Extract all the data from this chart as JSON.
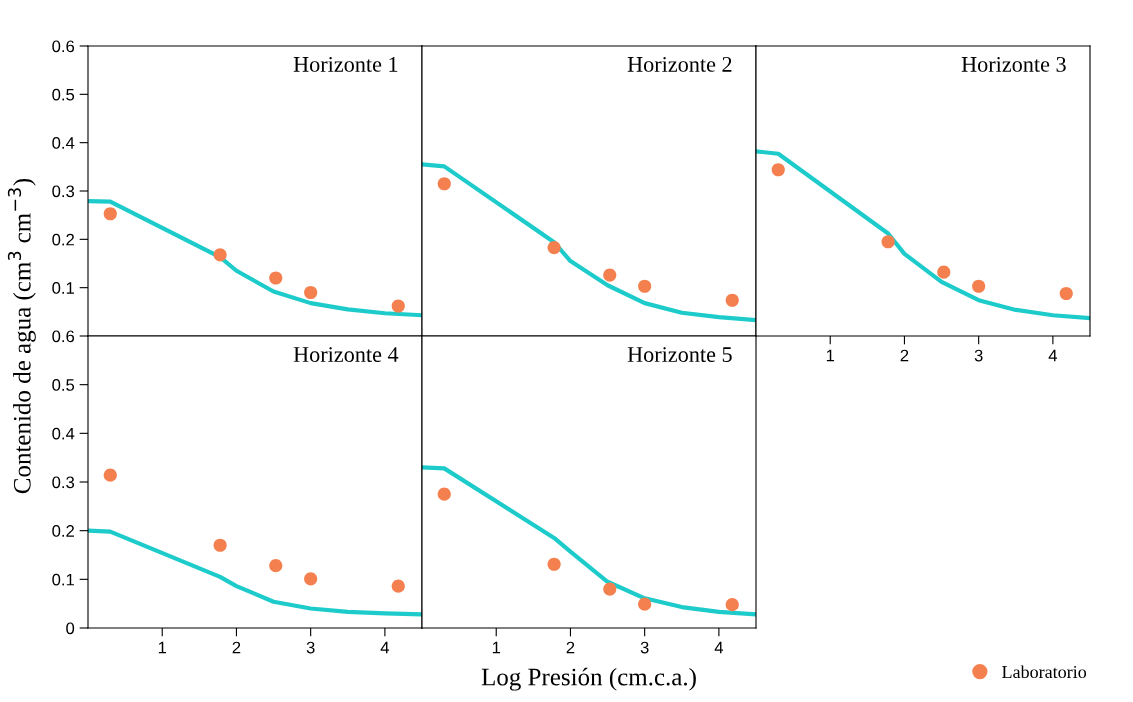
{
  "chart_data": [
    {
      "type": "line",
      "title": "Horizonte 1",
      "ylabel": "Contenido de agua (cm$^{3}$ cm$^{−3}$)",
      "xlim": [
        0,
        4.5
      ],
      "ylim": [
        0,
        0.6
      ],
      "yticks": [
        0.1,
        0.2,
        0.3,
        0.4,
        0.5,
        0.6
      ],
      "tick_labels": "y",
      "series": [
        {
          "color": "#1ecbcb",
          "x": [
            0,
            0.3,
            1.78,
            2,
            2.5,
            3,
            3.5,
            4,
            4.5
          ],
          "values": [
            0.279,
            0.278,
            0.163,
            0.135,
            0.092,
            0.068,
            0.055,
            0.047,
            0.043
          ]
        },
        {
          "type": "scatter",
          "name": "Laboratorio",
          "color": "#f5804f",
          "marker": "circle",
          "x": [
            0.3,
            1.78,
            2.53,
            3,
            4.18
          ],
          "values": [
            0.253,
            0.168,
            0.12,
            0.09,
            0.062
          ]
        }
      ]
    },
    {
      "type": "line",
      "title": "Horizonte 2",
      "xlim": [
        0,
        4.5
      ],
      "ylim": [
        0,
        0.6
      ],
      "tick_labels": false,
      "series": [
        {
          "color": "#1ecbcb",
          "x": [
            0,
            0.3,
            1.78,
            2,
            2.5,
            3,
            3.5,
            4,
            4.5
          ],
          "values": [
            0.355,
            0.351,
            0.194,
            0.155,
            0.105,
            0.068,
            0.048,
            0.039,
            0.033
          ]
        },
        {
          "type": "scatter",
          "name": "Laboratorio",
          "color": "#f5804f",
          "marker": "circle",
          "x": [
            0.3,
            1.78,
            2.53,
            3,
            4.18
          ],
          "values": [
            0.315,
            0.183,
            0.126,
            0.103,
            0.074
          ]
        }
      ]
    },
    {
      "type": "line",
      "title": "Horizonte 3",
      "xlim": [
        0,
        4.5
      ],
      "ylim": [
        0,
        0.6
      ],
      "xticks": [
        1,
        2,
        3,
        4
      ],
      "tick_labels": "x",
      "series": [
        {
          "color": "#1ecbcb",
          "x": [
            0,
            0.3,
            1.78,
            2,
            2.5,
            3,
            3.5,
            4,
            4.5
          ],
          "values": [
            0.382,
            0.377,
            0.212,
            0.17,
            0.112,
            0.074,
            0.054,
            0.043,
            0.037
          ]
        },
        {
          "type": "scatter",
          "name": "Laboratorio",
          "color": "#f5804f",
          "marker": "circle",
          "x": [
            0.3,
            1.78,
            2.53,
            3,
            4.18
          ],
          "values": [
            0.344,
            0.195,
            0.132,
            0.103,
            0.088
          ]
        }
      ]
    },
    {
      "type": "line",
      "title": "Horizonte 4",
      "xlim": [
        0,
        4.5
      ],
      "ylim": [
        0,
        0.6
      ],
      "xticks": [
        1,
        2,
        3,
        4
      ],
      "yticks": [
        0,
        0.1,
        0.2,
        0.3,
        0.4,
        0.5,
        0.6
      ],
      "series": [
        {
          "color": "#1ecbcb",
          "x": [
            0,
            0.3,
            1.78,
            2,
            2.5,
            3,
            3.5,
            4,
            4.5
          ],
          "values": [
            0.2,
            0.198,
            0.105,
            0.086,
            0.054,
            0.04,
            0.033,
            0.03,
            0.028
          ]
        },
        {
          "type": "scatter",
          "name": "Laboratorio",
          "color": "#f5804f",
          "marker": "circle",
          "x": [
            0.3,
            1.78,
            2.53,
            3,
            4.18
          ],
          "values": [
            0.314,
            0.17,
            0.128,
            0.101,
            0.086
          ]
        }
      ]
    },
    {
      "type": "line",
      "title": "Horizonte 5",
      "xlabel": "Log Presión (cm.c.a.)",
      "xlim": [
        0,
        4.5
      ],
      "ylim": [
        0,
        0.6
      ],
      "xticks": [
        1,
        2,
        3,
        4
      ],
      "tick_labels": "x",
      "legend": "bottom right",
      "series": [
        {
          "color": "#1ecbcb",
          "x": [
            0,
            0.3,
            1.78,
            2,
            2.5,
            3,
            3.5,
            4,
            4.5
          ],
          "values": [
            0.33,
            0.328,
            0.185,
            0.157,
            0.095,
            0.061,
            0.043,
            0.033,
            0.028
          ]
        },
        {
          "type": "scatter",
          "name": "Laboratorio",
          "color": "#f5804f",
          "marker": "circle",
          "x": [
            0.3,
            1.78,
            2.53,
            3,
            4.18
          ],
          "values": [
            0.275,
            0.131,
            0.08,
            0.049,
            0.048
          ]
        }
      ]
    }
  ]
}
